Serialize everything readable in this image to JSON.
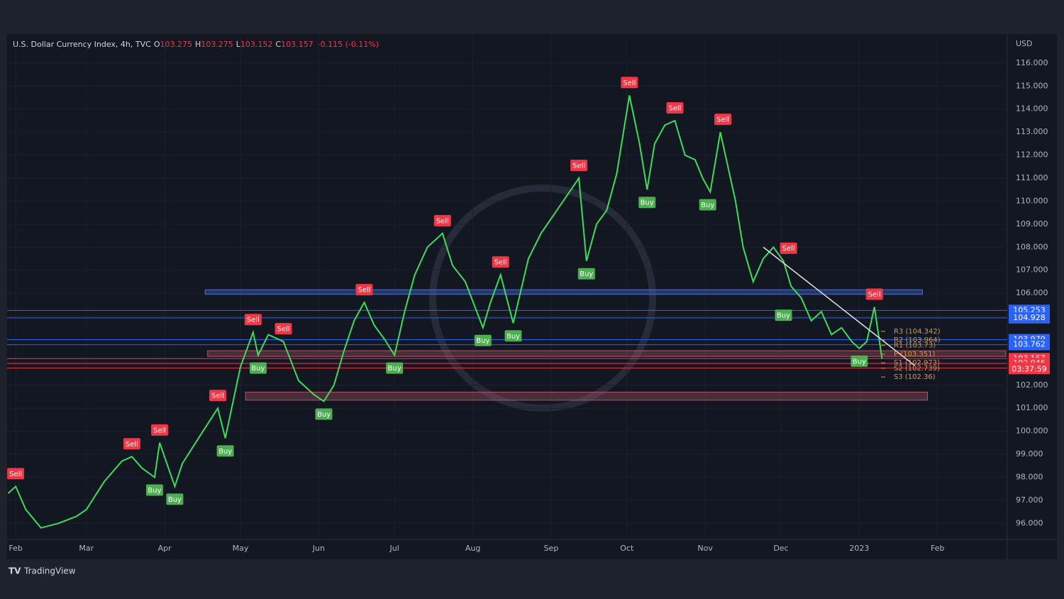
{
  "chart_data": {
    "type": "line",
    "header": {
      "symbol": "U.S. Dollar Currency Index, 4h, TVC",
      "ohlc": [
        {
          "label": "O",
          "value": 103.275
        },
        {
          "label": "H",
          "value": 103.275
        },
        {
          "label": "L",
          "value": 103.152
        },
        {
          "label": "C",
          "value": 103.157
        }
      ],
      "change": "-0.115 (-0.11%)"
    },
    "y_unit": "USD",
    "xlim": [
      -3.4,
      392.6
    ],
    "xticks": [
      {
        "value": 0,
        "label": "Feb"
      },
      {
        "value": 28,
        "label": "Mar"
      },
      {
        "value": 59,
        "label": "Apr"
      },
      {
        "value": 89,
        "label": "May"
      },
      {
        "value": 120,
        "label": "Jun"
      },
      {
        "value": 150,
        "label": "Jul"
      },
      {
        "value": 181,
        "label": "Aug"
      },
      {
        "value": 212,
        "label": "Sep"
      },
      {
        "value": 242,
        "label": "Oct"
      },
      {
        "value": 273,
        "label": "Nov"
      },
      {
        "value": 303,
        "label": "Dec"
      },
      {
        "value": 334,
        "label": "2023"
      },
      {
        "value": 365,
        "label": "Feb"
      }
    ],
    "ylim": [
      95.3,
      117.2
    ],
    "yticks": [
      {
        "value": 96,
        "label": "96.000"
      },
      {
        "value": 97,
        "label": "97.000"
      },
      {
        "value": 98,
        "label": "98.000"
      },
      {
        "value": 99,
        "label": "99.000"
      },
      {
        "value": 100,
        "label": "100.000"
      },
      {
        "value": 101,
        "label": "101.000"
      },
      {
        "value": 102,
        "label": "102.000"
      },
      {
        "value": 103,
        "label": "103.000"
      },
      {
        "value": 104,
        "label": "104.000"
      },
      {
        "value": 105,
        "label": "105.000"
      },
      {
        "value": 106,
        "label": "106.000"
      },
      {
        "value": 107,
        "label": "107.000"
      },
      {
        "value": 108,
        "label": "108.000"
      },
      {
        "value": 109,
        "label": "109.000"
      },
      {
        "value": 110,
        "label": "110.000"
      },
      {
        "value": 111,
        "label": "111.000"
      },
      {
        "value": 112,
        "label": "112.000"
      },
      {
        "value": 113,
        "label": "113.000"
      },
      {
        "value": 114,
        "label": "114.000"
      },
      {
        "value": 115,
        "label": "115.000"
      },
      {
        "value": 116,
        "label": "116.000"
      }
    ],
    "series": [
      {
        "color": "#3ddc5a",
        "x": [
          -3,
          0,
          4,
          10,
          17,
          24,
          28,
          35,
          42,
          46,
          50,
          55,
          57,
          63,
          66,
          73,
          80,
          83,
          89,
          94,
          96,
          100,
          106,
          112,
          118,
          122,
          126,
          130,
          134,
          138,
          142,
          146,
          150,
          154,
          158,
          163,
          169,
          173,
          178,
          185,
          188,
          192,
          197,
          203,
          208,
          213,
          218,
          223,
          226,
          230,
          234,
          238,
          243,
          247,
          250,
          253,
          257,
          261,
          265,
          269,
          272,
          275,
          279,
          282,
          285,
          288,
          292,
          296,
          300,
          304,
          307,
          311,
          315,
          319,
          323,
          327,
          331,
          334,
          337,
          340,
          343
        ],
        "values": [
          97.3,
          97.6,
          96.6,
          95.8,
          96.0,
          96.3,
          96.6,
          97.8,
          98.7,
          98.9,
          98.4,
          98.0,
          99.5,
          97.6,
          98.6,
          99.8,
          101.0,
          99.7,
          102.8,
          104.3,
          103.3,
          104.2,
          103.9,
          102.2,
          101.6,
          101.3,
          102.0,
          103.5,
          104.8,
          105.6,
          104.6,
          104.0,
          103.3,
          105.2,
          106.8,
          108.0,
          108.6,
          107.2,
          106.5,
          104.5,
          105.6,
          106.8,
          104.7,
          107.5,
          108.6,
          109.4,
          110.2,
          111.0,
          107.4,
          109.0,
          109.6,
          111.2,
          114.6,
          112.5,
          110.5,
          112.5,
          113.3,
          113.5,
          112.0,
          111.8,
          111.0,
          110.4,
          113.0,
          111.5,
          110.0,
          108.0,
          106.5,
          107.5,
          108.0,
          107.4,
          106.3,
          105.8,
          104.8,
          105.2,
          104.2,
          104.5,
          103.9,
          103.6,
          103.9,
          105.4,
          103.157
        ]
      }
    ],
    "signals": [
      {
        "label": "Sell",
        "x": 0,
        "y": 97.6
      },
      {
        "label": "Sell",
        "x": 46,
        "y": 98.9
      },
      {
        "label": "Sell",
        "x": 57,
        "y": 99.5
      },
      {
        "label": "Buy",
        "x": 55,
        "y": 98.0
      },
      {
        "label": "Buy",
        "x": 63,
        "y": 97.6
      },
      {
        "label": "Sell",
        "x": 80,
        "y": 101.0
      },
      {
        "label": "Buy",
        "x": 83,
        "y": 99.7
      },
      {
        "label": "Sell",
        "x": 94,
        "y": 104.3
      },
      {
        "label": "Buy",
        "x": 96,
        "y": 103.3
      },
      {
        "label": "Sell",
        "x": 106,
        "y": 103.9
      },
      {
        "label": "Buy",
        "x": 122,
        "y": 101.3
      },
      {
        "label": "Sell",
        "x": 138,
        "y": 105.6
      },
      {
        "label": "Buy",
        "x": 150,
        "y": 103.3
      },
      {
        "label": "Sell",
        "x": 169,
        "y": 108.6
      },
      {
        "label": "Buy",
        "x": 185,
        "y": 104.5
      },
      {
        "label": "Sell",
        "x": 192,
        "y": 106.8
      },
      {
        "label": "Buy",
        "x": 197,
        "y": 104.7
      },
      {
        "label": "Sell",
        "x": 223,
        "y": 111.0
      },
      {
        "label": "Buy",
        "x": 226,
        "y": 107.4
      },
      {
        "label": "Sell",
        "x": 243,
        "y": 114.6
      },
      {
        "label": "Buy",
        "x": 250,
        "y": 110.5
      },
      {
        "label": "Sell",
        "x": 261,
        "y": 113.5
      },
      {
        "label": "Buy",
        "x": 274,
        "y": 110.4
      },
      {
        "label": "Sell",
        "x": 280,
        "y": 113.0
      },
      {
        "label": "Sell",
        "x": 306,
        "y": 107.4
      },
      {
        "label": "Buy",
        "x": 304,
        "y": 105.6
      },
      {
        "label": "Buy",
        "x": 334,
        "y": 103.6
      },
      {
        "label": "Sell",
        "x": 340,
        "y": 105.4
      }
    ],
    "zones": [
      {
        "xlim": [
          75,
          359
        ],
        "ylim": [
          105.95,
          106.15
        ],
        "color": "#4a6fd0"
      },
      {
        "xlim": [
          76,
          392
        ],
        "ylim": [
          103.25,
          103.5
        ],
        "color": "#b05566"
      },
      {
        "xlim": [
          91,
          361
        ],
        "ylim": [
          101.35,
          101.7
        ],
        "color": "#b05566"
      }
    ],
    "levels": [
      {
        "value": 105.253,
        "color": "#2962ff"
      },
      {
        "value": 104.928,
        "color": "#2962ff"
      },
      {
        "value": 103.979,
        "color": "#2962ff"
      },
      {
        "value": 103.762,
        "color": "#2962ff"
      },
      {
        "value": 103.157,
        "color": "#f23645"
      },
      {
        "value": 102.946,
        "color": "#f23645"
      },
      {
        "value": 102.745,
        "color": "#f23645"
      }
    ],
    "countdown": "03:37:59",
    "pivots": [
      {
        "label": "R3 (104.342)",
        "value": 104.342
      },
      {
        "label": "R2 (103.964)",
        "value": 103.964
      },
      {
        "label": "R1 (103.73)",
        "value": 103.73
      },
      {
        "label": "P (103.351)",
        "value": 103.351
      },
      {
        "label": "S1 (102.973)",
        "value": 102.973
      },
      {
        "label": "S2 (102.739)",
        "value": 102.739
      },
      {
        "label": "S3 (102.36)",
        "value": 102.36
      }
    ],
    "trendline": {
      "x": [
        296,
        356
      ],
      "y": [
        108.0,
        102.85
      ]
    },
    "footer": "TradingView"
  }
}
